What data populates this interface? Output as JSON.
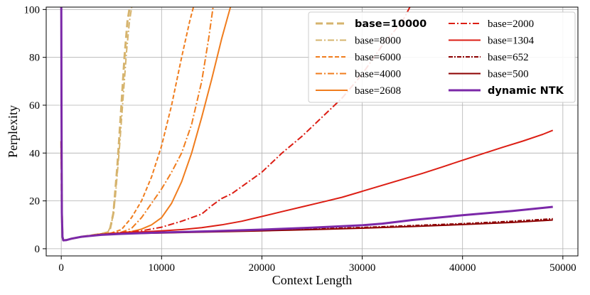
{
  "chart_data": {
    "type": "line",
    "xlabel": "Context Length",
    "ylabel": "Perplexity",
    "xlim": [
      -1500,
      51500
    ],
    "ylim": [
      -3,
      101
    ],
    "xticks": [
      0,
      10000,
      20000,
      30000,
      40000,
      50000
    ],
    "yticks": [
      0,
      20,
      40,
      60,
      80,
      100
    ],
    "grid": true,
    "legend_position": "top-right",
    "series": [
      {
        "name": "base=10000",
        "label_bold": true,
        "color": "#d6b46e",
        "dash": "10,5",
        "width": 3,
        "x": [
          0,
          60,
          120,
          200,
          500,
          1000,
          2000,
          3000,
          4000,
          4800,
          5200,
          5600,
          6000,
          6300,
          6600,
          6900
        ],
        "y": [
          45,
          15,
          5,
          3.5,
          3.6,
          4.2,
          5,
          5.6,
          6.2,
          7,
          15,
          35,
          60,
          80,
          95,
          103
        ]
      },
      {
        "name": "base=8000",
        "color": "#d6b46e",
        "dash": "9,3,2,3",
        "width": 2,
        "x": [
          0,
          60,
          120,
          200,
          500,
          1000,
          2000,
          3000,
          4000,
          4600,
          5000,
          5400,
          5800,
          6200,
          6500,
          6800,
          7100
        ],
        "y": [
          45,
          15,
          5,
          3.5,
          3.6,
          4.2,
          5,
          5.6,
          6.2,
          6.5,
          10,
          22,
          42,
          65,
          82,
          95,
          103
        ]
      },
      {
        "name": "base=6000",
        "color": "#f07d1e",
        "dash": "6,3",
        "width": 2,
        "x": [
          0,
          60,
          120,
          200,
          500,
          1000,
          2000,
          3000,
          4000,
          5000,
          6000,
          7000,
          8000,
          9000,
          10000,
          11000,
          12000,
          12800,
          13300
        ],
        "y": [
          45,
          15,
          5,
          3.5,
          3.6,
          4.2,
          5,
          5.6,
          6.2,
          6.6,
          8,
          13,
          20,
          30,
          43,
          60,
          80,
          95,
          103
        ]
      },
      {
        "name": "base=4000",
        "color": "#f07d1e",
        "dash": "9,3,2,3",
        "width": 2,
        "x": [
          0,
          60,
          120,
          200,
          500,
          1000,
          2000,
          3000,
          4000,
          5000,
          6000,
          7000,
          8000,
          9000,
          10000,
          11000,
          12000,
          13000,
          14000,
          14700,
          15200
        ],
        "y": [
          45,
          15,
          5,
          3.5,
          3.6,
          4.2,
          5,
          5.6,
          6.1,
          6.5,
          6.9,
          8.5,
          13,
          19,
          25,
          32,
          40,
          52,
          70,
          88,
          103
        ]
      },
      {
        "name": "base=2608",
        "color": "#f07d1e",
        "dash": "",
        "width": 2,
        "x": [
          0,
          60,
          120,
          200,
          500,
          1000,
          2000,
          3000,
          4000,
          5000,
          6000,
          7000,
          8000,
          9000,
          10000,
          11000,
          12000,
          13000,
          14000,
          15000,
          16000,
          16600,
          17000
        ],
        "y": [
          45,
          15,
          5,
          3.5,
          3.6,
          4.2,
          5,
          5.6,
          6.1,
          6.4,
          6.7,
          7.2,
          8.2,
          10,
          13,
          19,
          28,
          40,
          55,
          71,
          88,
          97,
          103
        ]
      },
      {
        "name": "base=2000",
        "color": "#dc1e14",
        "dash": "9,3,2,3",
        "width": 2,
        "x": [
          0,
          60,
          120,
          200,
          500,
          1000,
          2000,
          4000,
          6000,
          8000,
          10000,
          12000,
          14000,
          15000,
          16000,
          17000,
          18000,
          20000,
          22000,
          24000,
          26000,
          28000,
          30000,
          32000,
          34000,
          35000
        ],
        "y": [
          45,
          15,
          5,
          3.5,
          3.6,
          4.2,
          5,
          6,
          6.8,
          7.5,
          9,
          11.5,
          14.5,
          18,
          21,
          23,
          26,
          32,
          40,
          47,
          55,
          63,
          73,
          85,
          95,
          103
        ]
      },
      {
        "name": "base=1304",
        "color": "#dc1e14",
        "dash": "",
        "width": 2,
        "x": [
          0,
          60,
          120,
          200,
          500,
          1000,
          2000,
          4000,
          6000,
          8000,
          10000,
          12000,
          14000,
          16000,
          18000,
          20000,
          22000,
          24000,
          26000,
          28000,
          30000,
          32000,
          34000,
          36000,
          38000,
          40000,
          42000,
          44000,
          46000,
          48000,
          49000
        ],
        "y": [
          45,
          15,
          5,
          3.5,
          3.6,
          4.2,
          5,
          6,
          6.6,
          7,
          7.5,
          8,
          8.8,
          10,
          11.5,
          13.5,
          15.5,
          17.5,
          19.5,
          21.5,
          24,
          26.5,
          29,
          31.5,
          34.2,
          37,
          39.7,
          42.4,
          45,
          47.8,
          49.5
        ]
      },
      {
        "name": "base=652",
        "color": "#8c0000",
        "dash": "6,2,2,2",
        "width": 2,
        "x": [
          0,
          60,
          120,
          200,
          500,
          1000,
          2000,
          4000,
          6000,
          10000,
          15000,
          20000,
          25000,
          30000,
          35000,
          40000,
          45000,
          49000
        ],
        "y": [
          45,
          15,
          5,
          3.5,
          3.6,
          4.2,
          5,
          6,
          6.4,
          6.8,
          7.2,
          7.7,
          8.3,
          8.9,
          9.7,
          10.5,
          11.5,
          12.5
        ]
      },
      {
        "name": "base=500",
        "color": "#8c0000",
        "dash": "",
        "width": 2,
        "x": [
          0,
          60,
          120,
          200,
          500,
          1000,
          2000,
          4000,
          6000,
          10000,
          15000,
          20000,
          25000,
          30000,
          35000,
          40000,
          45000,
          49000
        ],
        "y": [
          45,
          15,
          5,
          3.5,
          3.6,
          4.2,
          5,
          6,
          6.3,
          6.6,
          7,
          7.5,
          8,
          8.6,
          9.3,
          10.1,
          11,
          12
        ]
      },
      {
        "name": "dynamic NTK",
        "label_bold": true,
        "color": "#7b28a8",
        "dash": "",
        "width": 3,
        "x": [
          0,
          20,
          60,
          120,
          200,
          500,
          1000,
          2000,
          4000,
          6000,
          10000,
          15000,
          20000,
          25000,
          30000,
          32000,
          35000,
          40000,
          45000,
          49000
        ],
        "y": [
          103,
          60,
          15,
          5,
          3.5,
          3.6,
          4.2,
          5,
          5.8,
          6.2,
          6.8,
          7.3,
          8,
          8.8,
          9.8,
          10.5,
          12,
          14,
          15.8,
          17.5
        ]
      }
    ]
  }
}
